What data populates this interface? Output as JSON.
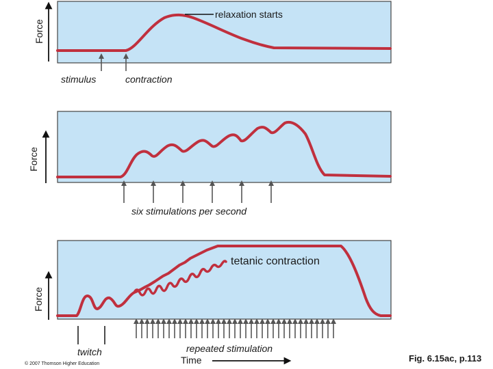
{
  "panel_a": {
    "y_axis_label": "Force",
    "labels": {
      "relaxation": "relaxation starts",
      "stimulus": "stimulus",
      "contraction": "contraction"
    }
  },
  "panel_b": {
    "y_axis_label": "Force",
    "caption": "six stimulations per second",
    "stimulation_count": 6
  },
  "panel_c": {
    "y_axis_label": "Force",
    "labels": {
      "tetanic": "tetanic contraction",
      "twitch": "twitch",
      "repeated": "repeated stimulation"
    }
  },
  "x_axis_label": "Time",
  "copyright": "© 2007 Thomson Higher Education",
  "figure_ref": "Fig. 6.15ac, p.113",
  "colors": {
    "panel_fill": "#c5e3f6",
    "curve": "#c0303e",
    "arrow": "#555555"
  }
}
